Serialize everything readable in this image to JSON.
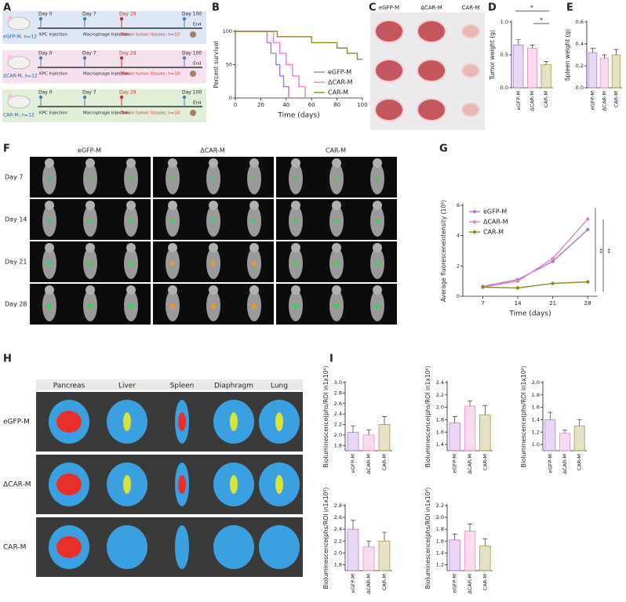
{
  "panel_labels": [
    "A",
    "B",
    "C",
    "D",
    "E",
    "F",
    "G",
    "H",
    "I"
  ],
  "schematic": {
    "groups": [
      "eGFP-M, n=12",
      "ΔCAR-M, n=12",
      "CAR-M, n=12"
    ],
    "days": [
      "Day 0",
      "Day 7",
      "Day 28",
      "Day 100"
    ],
    "events": [
      "KPC Injection",
      "Macrophage Injection",
      "Obtain tumor tissues, n=10",
      "End"
    ]
  },
  "tumor_photos": {
    "groups": [
      "eGFP-M",
      "ΔCAR-M",
      "CAR-M"
    ]
  },
  "ivis": {
    "groups": [
      "eGFP-M",
      "ΔCAR-M",
      "CAR-M"
    ],
    "days": [
      "Day 7",
      "Day 14",
      "Day 21",
      "Day 28"
    ]
  },
  "organs": {
    "organs": [
      "Pancreas",
      "Liver",
      "Spleen",
      "Diaphragm",
      "Lung"
    ],
    "groups": [
      "eGFP-M",
      "ΔCAR-M",
      "CAR-M"
    ]
  },
  "chart_data": [
    {
      "type": "line",
      "ylabel": "Percent survival",
      "xlabel": "Time (days)",
      "xlim": [
        0,
        100
      ],
      "xticks": [
        0,
        20,
        40,
        60,
        80,
        100
      ],
      "ylim": [
        0,
        100
      ],
      "yticks": [
        0,
        50,
        100
      ],
      "legend": "right",
      "series": [
        {
          "name": "eGFP-M",
          "color": "#a77ad0",
          "x": [
            0,
            25,
            25,
            28,
            28,
            32,
            32,
            35,
            35,
            38,
            38,
            42,
            42
          ],
          "values": [
            100,
            100,
            83,
            83,
            67,
            67,
            50,
            50,
            33,
            33,
            17,
            17,
            0
          ]
        },
        {
          "name": "ΔCAR-M",
          "color": "#f07ec0",
          "x": [
            0,
            30,
            30,
            35,
            35,
            40,
            40,
            45,
            45,
            50,
            50,
            55,
            55
          ],
          "values": [
            100,
            100,
            83,
            83,
            67,
            67,
            50,
            50,
            33,
            33,
            17,
            17,
            0
          ]
        },
        {
          "name": "CAR-M",
          "color": "#8f8a22",
          "x": [
            0,
            33,
            33,
            60,
            60,
            80,
            80,
            88,
            88,
            96,
            96,
            100
          ],
          "values": [
            100,
            100,
            92,
            92,
            83,
            83,
            75,
            75,
            67,
            67,
            58,
            58
          ]
        }
      ]
    },
    {
      "type": "bar",
      "ylabel": "Tumor weight (g)",
      "categories": [
        "eGFP-M",
        "ΔCAR-M",
        "CAR-M"
      ],
      "values": [
        0.65,
        0.6,
        0.35
      ],
      "errors": [
        0.08,
        0.05,
        0.05
      ],
      "colors": [
        "#b57fd6",
        "#f08cc8",
        "#a89a45"
      ],
      "ylim": [
        0,
        1.0
      ],
      "yticks": [
        {
          "value": 0,
          "label": "0.0"
        },
        0.5,
        {
          "value": 1,
          "label": "1.0"
        }
      ],
      "annotations": [
        "*",
        "*"
      ]
    },
    {
      "type": "bar",
      "ylabel": "Spleen weight (g)",
      "categories": [
        "eGFP-M",
        "ΔCAR-M",
        "CAR-M"
      ],
      "values": [
        0.32,
        0.27,
        0.3
      ],
      "errors": [
        0.04,
        0.03,
        0.05
      ],
      "colors": [
        "#b57fd6",
        "#f08cc8",
        "#a89a45"
      ],
      "ylim": [
        0,
        0.6
      ],
      "yticks": [
        {
          "value": 0,
          "label": "0.0"
        },
        0.2,
        0.4,
        0.6
      ]
    },
    {
      "type": "line",
      "ylabel": "Average fluoresceneintensity (10⁸)",
      "xlabel": "Time (days)",
      "x": [
        7,
        14,
        21,
        28
      ],
      "xlim": [
        3,
        30
      ],
      "xticks": [
        7,
        14,
        21,
        28
      ],
      "ylim": [
        0,
        6
      ],
      "yticks": [
        0,
        2,
        4,
        6
      ],
      "markers": true,
      "legend": "upper left",
      "series": [
        {
          "name": "eGFP-M",
          "color": "#a77ad0",
          "values": [
            0.65,
            1.1,
            2.3,
            4.4
          ]
        },
        {
          "name": "ΔCAR-M",
          "color": "#f07ec0",
          "values": [
            0.6,
            1.0,
            2.5,
            5.1
          ]
        },
        {
          "name": "CAR-M",
          "color": "#8f8a22",
          "values": [
            0.6,
            0.55,
            0.85,
            0.95
          ]
        }
      ],
      "annotations": [
        "**",
        "**"
      ]
    },
    {
      "type": "bar",
      "ylabel": "Bioluminescence(phs/ROI in1x10⁸)",
      "categories": [
        "eGFP-M",
        "ΔCAR-M",
        "CAR-M"
      ],
      "values": [
        2.05,
        2.0,
        2.2
      ],
      "errors": [
        0.12,
        0.1,
        0.15
      ],
      "colors": [
        "#b57fd6",
        "#f08cc8",
        "#a89a45"
      ],
      "ylim": [
        1.7,
        3.0
      ],
      "yticks": [
        1.8,
        {
          "value": 2,
          "label": "2.0"
        },
        2.2,
        2.4,
        2.6,
        2.8,
        {
          "value": 3,
          "label": "3.0"
        }
      ]
    },
    {
      "type": "bar",
      "ylabel": "Bioluminescence(phs/ROI in1x10⁸)",
      "categories": [
        "eGFP-M",
        "ΔCAR-M",
        "CAR-M"
      ],
      "values": [
        1.75,
        2.02,
        1.88
      ],
      "errors": [
        0.1,
        0.08,
        0.15
      ],
      "colors": [
        "#b57fd6",
        "#f08cc8",
        "#a89a45"
      ],
      "ylim": [
        1.3,
        2.4
      ],
      "yticks": [
        1.4,
        1.6,
        1.8,
        {
          "value": 2,
          "label": "2.0"
        },
        2.2,
        2.4
      ]
    },
    {
      "type": "bar",
      "ylabel": "Bioluminescence(phs/ROI in1x10⁸)",
      "categories": [
        "eGFP-M",
        "ΔCAR-M",
        "CAR-M"
      ],
      "values": [
        1.4,
        1.18,
        1.3
      ],
      "errors": [
        0.12,
        0.05,
        0.1
      ],
      "colors": [
        "#b57fd6",
        "#f08cc8",
        "#a89a45"
      ],
      "ylim": [
        0.9,
        2.0
      ],
      "yticks": [
        {
          "value": 1,
          "label": "1.0"
        },
        1.2,
        1.4,
        1.6,
        1.8,
        {
          "value": 2,
          "label": "2.0"
        }
      ]
    },
    {
      "type": "bar",
      "ylabel": "Bioluminescence(phs/ROI in1x10⁸)",
      "categories": [
        "eGFP-M",
        "ΔCAR-M",
        "CAR-M"
      ],
      "values": [
        2.4,
        2.1,
        2.2
      ],
      "errors": [
        0.15,
        0.1,
        0.15
      ],
      "colors": [
        "#b57fd6",
        "#f08cc8",
        "#a89a45"
      ],
      "ylim": [
        1.7,
        2.8
      ],
      "yticks": [
        1.8,
        {
          "value": 2,
          "label": "2.0"
        },
        2.2,
        2.4,
        2.6,
        2.8
      ]
    },
    {
      "type": "bar",
      "ylabel": "Bioluminescence(phs/ROI in1x10⁸)",
      "categories": [
        "eGFP-M",
        "ΔCAR-M",
        "CAR-M"
      ],
      "values": [
        1.62,
        1.77,
        1.52
      ],
      "errors": [
        0.1,
        0.12,
        0.12
      ],
      "colors": [
        "#b57fd6",
        "#f08cc8",
        "#a89a45"
      ],
      "ylim": [
        1.1,
        2.2
      ],
      "yticks": [
        1.2,
        1.4,
        1.6,
        1.8,
        {
          "value": 2,
          "label": "2.0"
        },
        2.2
      ]
    }
  ]
}
